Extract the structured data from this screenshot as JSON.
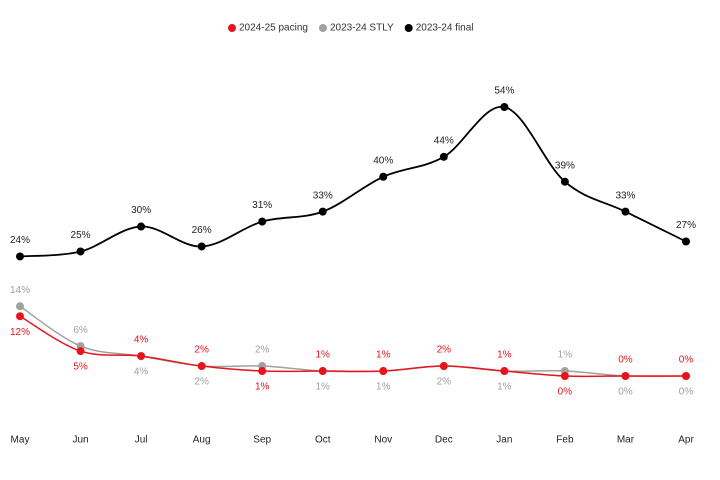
{
  "chart_data": {
    "type": "line",
    "categories": [
      "May",
      "Jun",
      "Jul",
      "Aug",
      "Sep",
      "Oct",
      "Nov",
      "Dec",
      "Jan",
      "Feb",
      "Mar",
      "Apr"
    ],
    "series": [
      {
        "name": "2024-25 pacing",
        "color": "#e8141c",
        "values": [
          12,
          5,
          4,
          2,
          1,
          1,
          1,
          2,
          1,
          0,
          0,
          0
        ],
        "value_labels": [
          "12%",
          "5%",
          "4%",
          "2%",
          "1%",
          "1%",
          "1%",
          "2%",
          "1%",
          "0%",
          "0%",
          "0%"
        ]
      },
      {
        "name": "2023-24 STLY",
        "color": "#a0a0a0",
        "values": [
          14,
          6,
          4,
          2,
          2,
          1,
          1,
          2,
          1,
          1,
          0,
          0
        ],
        "value_labels": [
          "14%",
          "6%",
          "4%",
          "2%",
          "2%",
          "1%",
          "1%",
          "2%",
          "1%",
          "1%",
          "0%",
          "0%"
        ]
      },
      {
        "name": "2023-24 final",
        "color": "#000000",
        "values": [
          24,
          25,
          30,
          26,
          31,
          33,
          40,
          44,
          54,
          39,
          33,
          27
        ],
        "value_labels": [
          "24%",
          "25%",
          "30%",
          "26%",
          "31%",
          "33%",
          "40%",
          "44%",
          "54%",
          "39%",
          "33%",
          "27%"
        ]
      }
    ],
    "legend": "top"
  }
}
